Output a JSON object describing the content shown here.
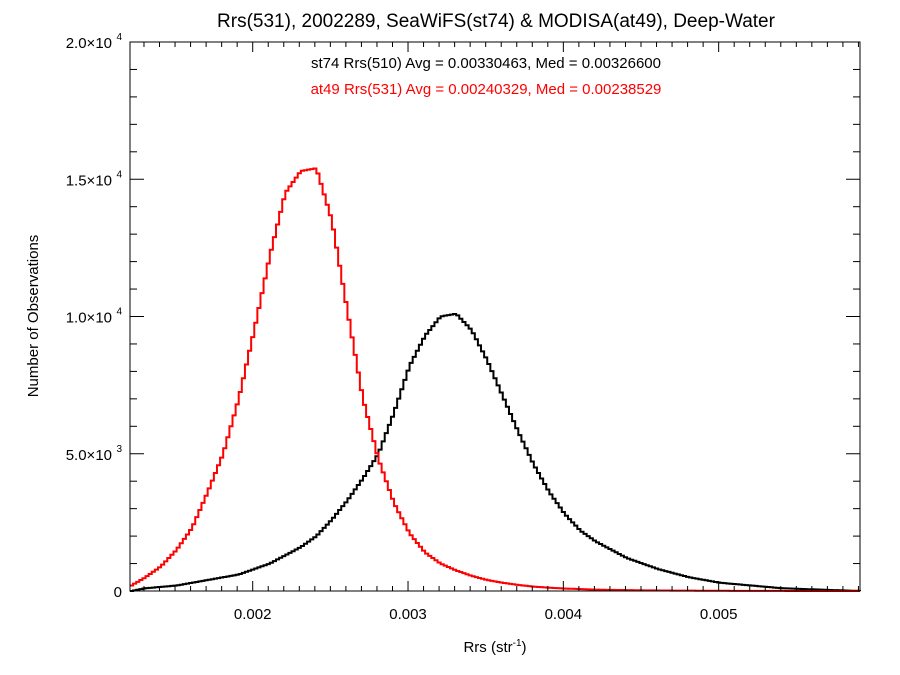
{
  "chart_data": {
    "type": "line",
    "title": "Rrs(531), 2002289, SeaWiFS(st74) & MODISA(at49), Deep-Water",
    "xlabel": {
      "main": "Rrs (str",
      "sup": "-1",
      "close": ")"
    },
    "ylabel": "Number of Observations",
    "xlim": [
      0.00121,
      0.00591
    ],
    "ylim": [
      0,
      20000
    ],
    "x_ticks": [
      {
        "value": 0.002,
        "label": "0.002"
      },
      {
        "value": 0.003,
        "label": "0.003"
      },
      {
        "value": 0.004,
        "label": "0.004"
      },
      {
        "value": 0.005,
        "label": "0.005"
      }
    ],
    "y_ticks": [
      {
        "value": 0,
        "mant": "0",
        "exp": ""
      },
      {
        "value": 5000,
        "mant": "5.0×10",
        "exp": "3"
      },
      {
        "value": 10000,
        "mant": "1.0×10",
        "exp": "4"
      },
      {
        "value": 15000,
        "mant": "1.5×10",
        "exp": "4"
      },
      {
        "value": 20000,
        "mant": "2.0×10",
        "exp": "4"
      }
    ],
    "annotations": [
      {
        "text": "st74 Rrs(510) Avg = 0.00330463, Med = 0.00326600",
        "color": "#000000"
      },
      {
        "text": "at49 Rrs(531) Avg = 0.00240329, Med = 0.00238529",
        "color": "#ff0000"
      }
    ],
    "grid": false,
    "series": [
      {
        "color": "#000000",
        "x": [
          0.00121,
          0.0013,
          0.0014,
          0.0015,
          0.0016,
          0.0017,
          0.0018,
          0.0019,
          0.002,
          0.0021,
          0.0022,
          0.0023,
          0.0024,
          0.0025,
          0.0026,
          0.0027,
          0.0028,
          0.0029,
          0.003,
          0.0031,
          0.0032,
          0.0033,
          0.0034,
          0.0035,
          0.0036,
          0.0037,
          0.0038,
          0.0039,
          0.004,
          0.0041,
          0.0042,
          0.0043,
          0.0044,
          0.0045,
          0.0046,
          0.0047,
          0.0048,
          0.0049,
          0.005,
          0.0051,
          0.0052,
          0.0053,
          0.0054,
          0.0055,
          0.0056,
          0.0057,
          0.0058,
          0.00591
        ],
        "values": [
          0,
          100,
          150,
          200,
          300,
          400,
          500,
          600,
          800,
          1000,
          1300,
          1600,
          2000,
          2600,
          3300,
          4100,
          5000,
          6500,
          8200,
          9300,
          10000,
          10100,
          9500,
          8400,
          7100,
          5800,
          4600,
          3600,
          2800,
          2200,
          1800,
          1500,
          1200,
          1000,
          800,
          650,
          500,
          400,
          300,
          250,
          200,
          150,
          100,
          80,
          60,
          40,
          20,
          0
        ]
      },
      {
        "color": "#ff0000",
        "x": [
          0.00121,
          0.0013,
          0.0014,
          0.0015,
          0.0016,
          0.0017,
          0.0018,
          0.0019,
          0.002,
          0.0021,
          0.0022,
          0.0023,
          0.0024,
          0.0025,
          0.0026,
          0.0027,
          0.0028,
          0.0029,
          0.003,
          0.0031,
          0.0032,
          0.0033,
          0.0034,
          0.0035,
          0.0036,
          0.0037,
          0.0038,
          0.0039,
          0.004,
          0.0041,
          0.0042,
          0.0043,
          0.0045,
          0.0047,
          0.0049,
          0.0051,
          0.0053,
          0.0055,
          0.0057,
          0.00591
        ],
        "values": [
          200,
          500,
          900,
          1500,
          2300,
          3600,
          5000,
          7000,
          9500,
          12200,
          14500,
          15300,
          15400,
          13500,
          10200,
          7000,
          4800,
          3200,
          2100,
          1400,
          1000,
          750,
          550,
          400,
          300,
          220,
          160,
          120,
          90,
          70,
          50,
          40,
          25,
          15,
          10,
          6,
          3,
          2,
          1,
          0
        ]
      }
    ]
  }
}
